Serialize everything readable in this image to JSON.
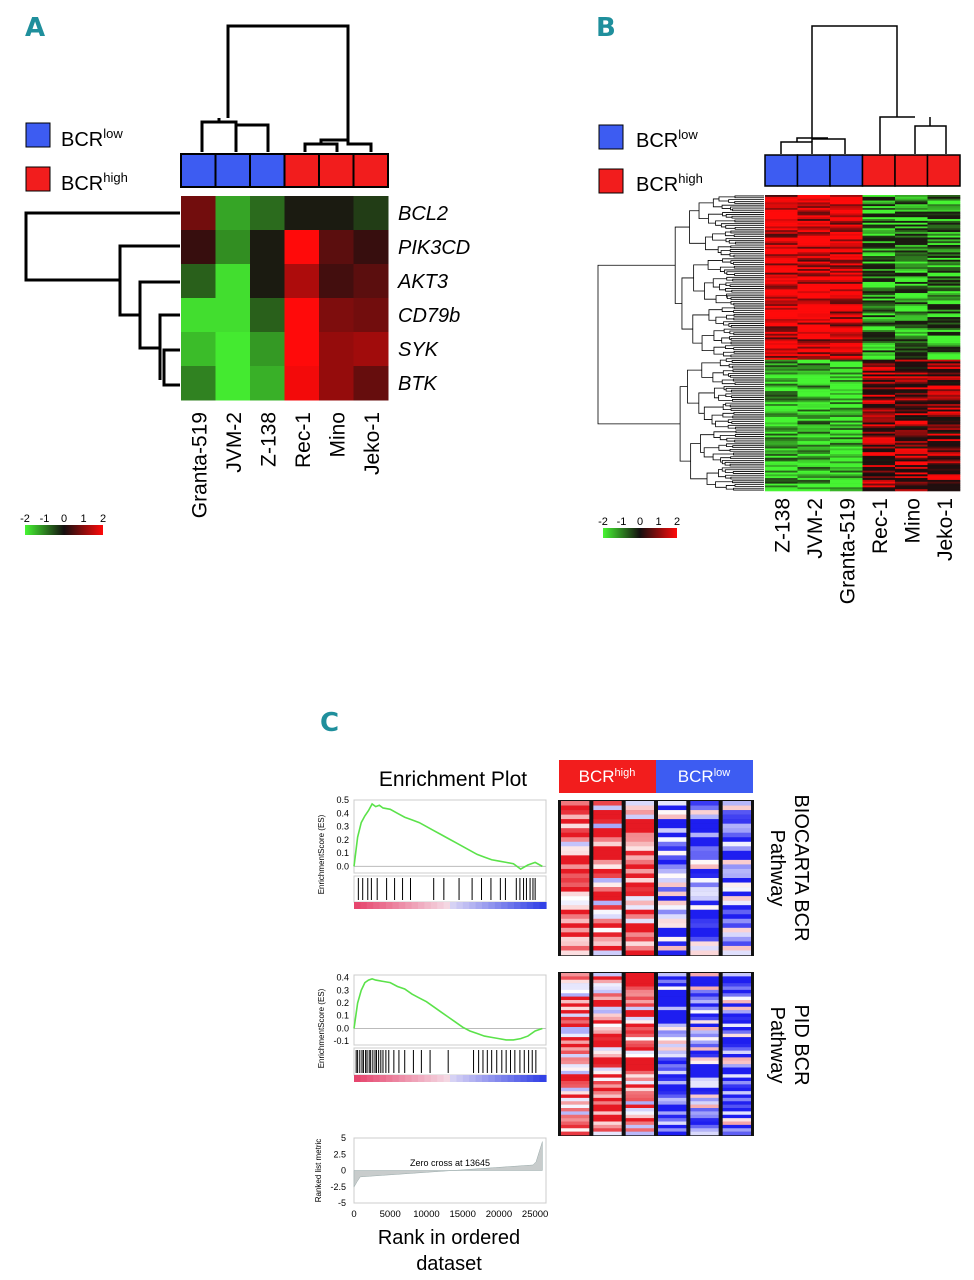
{
  "colors": {
    "bcr_low": "#3d5cf2",
    "bcr_high": "#f21d1d",
    "panel_label": "#1f8f9c",
    "gsea_line": "#5be24a",
    "metric_fill": "#c8cccc"
  },
  "panel_a": {
    "letter": "A",
    "legend": [
      {
        "base": "BCR",
        "sup": "low",
        "group": "low"
      },
      {
        "base": "BCR",
        "sup": "high",
        "group": "high"
      }
    ],
    "samples": [
      "Granta-519",
      "JVM-2",
      "Z-138",
      "Rec-1",
      "Mino",
      "Jeko-1"
    ],
    "groups": [
      "low",
      "low",
      "low",
      "high",
      "high",
      "high"
    ],
    "genes": [
      "BCL2",
      "PIK3CD",
      "AKT3",
      "CD79b",
      "SYK",
      "BTK"
    ],
    "matrix": [
      [
        0.8,
        -1.3,
        -0.8,
        -0.1,
        -0.1,
        -0.4
      ],
      [
        0.3,
        -1.1,
        -0.1,
        2.0,
        0.6,
        0.3
      ],
      [
        -0.7,
        -1.8,
        -0.1,
        1.3,
        0.4,
        0.6
      ],
      [
        -1.8,
        -1.8,
        -0.7,
        2.0,
        0.9,
        0.8
      ],
      [
        -1.5,
        -1.9,
        -1.2,
        2.0,
        1.1,
        1.2
      ],
      [
        -1.0,
        -1.9,
        -1.4,
        1.9,
        1.1,
        0.7
      ]
    ],
    "color_scale": {
      "ticks": [
        "-2",
        "-1",
        "0",
        "1",
        "2"
      ],
      "min": -2,
      "max": 2
    }
  },
  "panel_b": {
    "letter": "B",
    "legend": [
      {
        "base": "BCR",
        "sup": "low",
        "group": "low"
      },
      {
        "base": "BCR",
        "sup": "high",
        "group": "high"
      }
    ],
    "samples": [
      "Z-138",
      "JVM-2",
      "Granta-519",
      "Rec-1",
      "Mino",
      "Jeko-1"
    ],
    "groups": [
      "low",
      "low",
      "low",
      "high",
      "high",
      "high"
    ],
    "n_rows": 160,
    "color_scale": {
      "ticks": [
        "-2",
        "-1",
        "0",
        "1",
        "2"
      ],
      "min": -2,
      "max": 2
    }
  },
  "panel_c": {
    "letter": "C",
    "title": "Enrichment Plot",
    "header": [
      {
        "base": "BCR",
        "sup": "high",
        "group": "high"
      },
      {
        "base": "BCR",
        "sup": "low",
        "group": "low"
      }
    ],
    "pathways": [
      {
        "line1": "BIOCARTA BCR",
        "line2": "Pathway"
      },
      {
        "line1": "PID BCR",
        "line2": "Pathway"
      }
    ],
    "es_axis_label": "EnrichmentScore (ES)",
    "rank_axis_label": "Ranked list metric",
    "xlabel_line1": "Rank in ordered",
    "xlabel_line2": "dataset",
    "zero_cross": "Zero cross at 13645"
  },
  "chart_data": [
    {
      "type": "line",
      "title": "Enrichment Plot",
      "ylabel": "EnrichmentScore (ES)",
      "yticks": [
        "0.5",
        "0.4",
        "0.3",
        "0.2",
        "0.1",
        "0.0"
      ],
      "ylim": [
        -0.05,
        0.5
      ],
      "x": [
        0,
        500,
        1000,
        1500,
        2000,
        2500,
        3000,
        3500,
        4000,
        5000,
        6000,
        7000,
        8000,
        9000,
        10000,
        11000,
        12000,
        13000,
        14000,
        15000,
        16000,
        17000,
        18000,
        19000,
        20000,
        21000,
        22000,
        23000,
        24000,
        25000,
        26000
      ],
      "y": [
        0.0,
        0.22,
        0.33,
        0.38,
        0.42,
        0.47,
        0.45,
        0.46,
        0.44,
        0.43,
        0.4,
        0.37,
        0.35,
        0.33,
        0.3,
        0.27,
        0.24,
        0.21,
        0.18,
        0.15,
        0.12,
        0.09,
        0.07,
        0.05,
        0.04,
        0.03,
        0.02,
        -0.02,
        0.01,
        0.03,
        0.0
      ],
      "hits": [
        600,
        1200,
        1900,
        2400,
        3200,
        4500,
        5600,
        6700,
        7800,
        11000,
        12400,
        14500,
        16300,
        17600,
        18900,
        20200,
        20900,
        22400,
        22900,
        23400,
        23800,
        24300,
        24700,
        25000
      ]
    },
    {
      "type": "line",
      "ylabel": "EnrichmentScore (ES)",
      "yticks": [
        "0.4",
        "0.3",
        "0.2",
        "0.1",
        "0.0",
        "-0.1"
      ],
      "ylim": [
        -0.13,
        0.42
      ],
      "x": [
        0,
        500,
        1000,
        1500,
        2000,
        2500,
        3000,
        4000,
        5000,
        6000,
        7000,
        8000,
        9000,
        10000,
        11000,
        12000,
        13000,
        14000,
        15000,
        16000,
        17000,
        18000,
        19000,
        20000,
        21000,
        22000,
        23000,
        24000,
        25000,
        26000
      ],
      "y": [
        0.0,
        0.2,
        0.3,
        0.36,
        0.38,
        0.39,
        0.38,
        0.37,
        0.36,
        0.33,
        0.31,
        0.27,
        0.24,
        0.21,
        0.17,
        0.13,
        0.09,
        0.05,
        0.01,
        -0.02,
        -0.04,
        -0.06,
        -0.07,
        -0.08,
        -0.09,
        -0.09,
        -0.08,
        -0.06,
        -0.02,
        0.0
      ],
      "hits": [
        300,
        500,
        800,
        1100,
        1300,
        1600,
        1800,
        2100,
        2300,
        2600,
        2900,
        3100,
        3400,
        3700,
        4000,
        4400,
        4800,
        5500,
        6200,
        7000,
        8200,
        9300,
        10500,
        13000,
        16500,
        17200,
        17800,
        18400,
        19000,
        19700,
        20400,
        21000,
        21600,
        22200,
        22900,
        23500,
        24100,
        24600,
        25100
      ]
    },
    {
      "type": "area",
      "ylabel": "Ranked list metric",
      "xlabel": "Rank in ordered dataset",
      "yticks": [
        "-5",
        "-2.5",
        "0",
        "2.5",
        "5"
      ],
      "xticks": [
        "0",
        "5000",
        "10000",
        "15000",
        "20000",
        "25000"
      ],
      "xlim": [
        0,
        26500
      ],
      "ylim": [
        -5,
        5
      ],
      "annotation": "Zero cross at 13645",
      "zero_cross": 13645
    }
  ]
}
